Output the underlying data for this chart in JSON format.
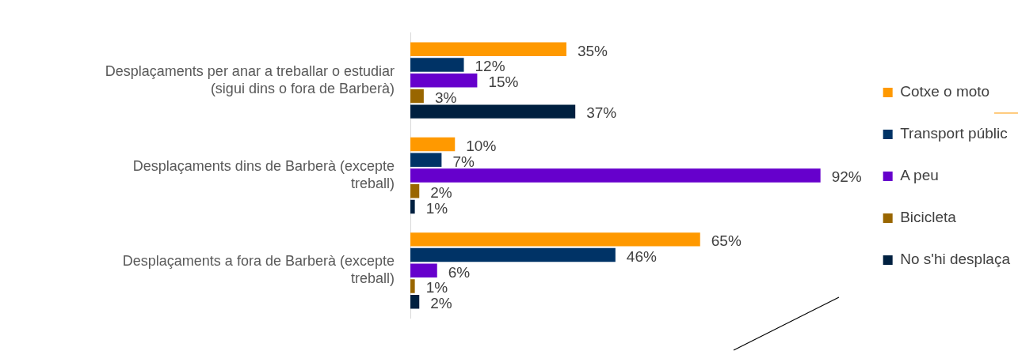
{
  "chart_data": {
    "type": "bar",
    "orientation": "horizontal",
    "tick_labels": "y",
    "legend": "right",
    "categories": [
      "Desplaçaments per anar a treballar o estudiar (sigui dins o fora de Barberà)",
      "Desplaçaments dins de Barberà (excepte treball)",
      "Desplaçaments a fora de Barberà (excepte treball)"
    ],
    "series": [
      {
        "name": "Cotxe o moto",
        "color": "#ff9900",
        "values": [
          35,
          10,
          65
        ],
        "value_labels": [
          "35%",
          "10%",
          "65%"
        ]
      },
      {
        "name": "Transport públic",
        "color": "#003366",
        "values": [
          12,
          7,
          46
        ],
        "value_labels": [
          "12%",
          "7%",
          "46%"
        ]
      },
      {
        "name": "A peu",
        "color": "#6600cc",
        "values": [
          15,
          92,
          6
        ],
        "value_labels": [
          "15%",
          "92%",
          "6%"
        ]
      },
      {
        "name": "Bicicleta",
        "color": "#996600",
        "values": [
          3,
          2,
          1
        ],
        "value_labels": [
          "3%",
          "2%",
          "1%"
        ]
      },
      {
        "name": "No s'hi desplaça",
        "color": "#002040",
        "values": [
          37,
          1,
          2
        ],
        "value_labels": [
          "37%",
          "1%",
          "2%"
        ]
      }
    ]
  }
}
